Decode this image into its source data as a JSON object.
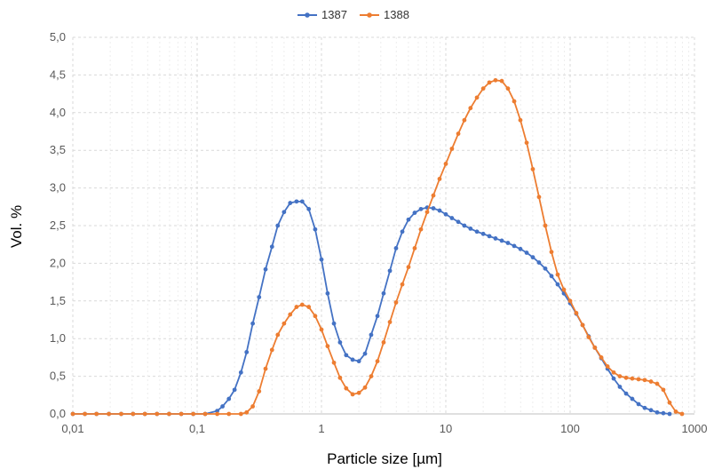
{
  "chart_data": {
    "type": "line",
    "xlabel": "Particle size [µm]",
    "ylabel": "Vol. %",
    "xscale": "log",
    "xlim": [
      0.01,
      1000
    ],
    "ylim": [
      0,
      5
    ],
    "xticks": [
      {
        "value": 0.01,
        "label": "0,01"
      },
      {
        "value": 0.1,
        "label": "0,1"
      },
      {
        "value": 1,
        "label": "1"
      },
      {
        "value": 10,
        "label": "10"
      },
      {
        "value": 100,
        "label": "100"
      },
      {
        "value": 1000,
        "label": "1000"
      }
    ],
    "yticks": [
      {
        "value": 0,
        "label": "0,0"
      },
      {
        "value": 0.5,
        "label": "0,5"
      },
      {
        "value": 1,
        "label": "1,0"
      },
      {
        "value": 1.5,
        "label": "1,5"
      },
      {
        "value": 2,
        "label": "2,0"
      },
      {
        "value": 2.5,
        "label": "2,5"
      },
      {
        "value": 3,
        "label": "3,0"
      },
      {
        "value": 3.5,
        "label": "3,5"
      },
      {
        "value": 4,
        "label": "4,0"
      },
      {
        "value": 4.5,
        "label": "4,5"
      },
      {
        "value": 5,
        "label": "5,0"
      }
    ],
    "grid": true,
    "legend_position": "top-center",
    "series": [
      {
        "name": "1387",
        "color": "#4472C4",
        "points": [
          [
            0.01,
            0
          ],
          [
            0.0125,
            0
          ],
          [
            0.0155,
            0
          ],
          [
            0.0195,
            0
          ],
          [
            0.0245,
            0
          ],
          [
            0.0305,
            0
          ],
          [
            0.038,
            0
          ],
          [
            0.0475,
            0
          ],
          [
            0.0595,
            0
          ],
          [
            0.0745,
            0
          ],
          [
            0.093,
            0
          ],
          [
            0.116,
            0
          ],
          [
            0.145,
            0.04
          ],
          [
            0.16,
            0.1
          ],
          [
            0.18,
            0.2
          ],
          [
            0.2,
            0.32
          ],
          [
            0.225,
            0.55
          ],
          [
            0.25,
            0.82
          ],
          [
            0.28,
            1.2
          ],
          [
            0.315,
            1.55
          ],
          [
            0.355,
            1.92
          ],
          [
            0.4,
            2.22
          ],
          [
            0.445,
            2.5
          ],
          [
            0.5,
            2.68
          ],
          [
            0.56,
            2.8
          ],
          [
            0.63,
            2.82
          ],
          [
            0.7,
            2.82
          ],
          [
            0.79,
            2.72
          ],
          [
            0.89,
            2.45
          ],
          [
            1.0,
            2.05
          ],
          [
            1.12,
            1.6
          ],
          [
            1.26,
            1.2
          ],
          [
            1.41,
            0.95
          ],
          [
            1.58,
            0.78
          ],
          [
            1.78,
            0.72
          ],
          [
            2.0,
            0.7
          ],
          [
            2.24,
            0.8
          ],
          [
            2.51,
            1.05
          ],
          [
            2.82,
            1.3
          ],
          [
            3.16,
            1.6
          ],
          [
            3.55,
            1.9
          ],
          [
            3.98,
            2.2
          ],
          [
            4.47,
            2.42
          ],
          [
            5.01,
            2.58
          ],
          [
            5.62,
            2.67
          ],
          [
            6.31,
            2.72
          ],
          [
            7.08,
            2.74
          ],
          [
            7.94,
            2.73
          ],
          [
            8.91,
            2.7
          ],
          [
            10,
            2.65
          ],
          [
            11.2,
            2.6
          ],
          [
            12.6,
            2.55
          ],
          [
            14.1,
            2.5
          ],
          [
            15.8,
            2.46
          ],
          [
            17.8,
            2.42
          ],
          [
            20,
            2.39
          ],
          [
            22.4,
            2.36
          ],
          [
            25.1,
            2.33
          ],
          [
            28.2,
            2.3
          ],
          [
            31.6,
            2.27
          ],
          [
            35.5,
            2.23
          ],
          [
            39.8,
            2.19
          ],
          [
            44.7,
            2.14
          ],
          [
            50.1,
            2.08
          ],
          [
            56.2,
            2.01
          ],
          [
            63.1,
            1.93
          ],
          [
            70.8,
            1.83
          ],
          [
            79.4,
            1.72
          ],
          [
            89.1,
            1.6
          ],
          [
            100,
            1.47
          ],
          [
            112,
            1.33
          ],
          [
            126,
            1.18
          ],
          [
            141,
            1.03
          ],
          [
            158,
            0.88
          ],
          [
            178,
            0.74
          ],
          [
            200,
            0.6
          ],
          [
            224,
            0.47
          ],
          [
            251,
            0.36
          ],
          [
            282,
            0.27
          ],
          [
            316,
            0.2
          ],
          [
            355,
            0.13
          ],
          [
            398,
            0.08
          ],
          [
            447,
            0.05
          ],
          [
            501,
            0.02
          ],
          [
            562,
            0.01
          ],
          [
            631,
            0
          ]
        ]
      },
      {
        "name": "1388",
        "color": "#ED7D31",
        "points": [
          [
            0.01,
            0
          ],
          [
            0.0125,
            0
          ],
          [
            0.0155,
            0
          ],
          [
            0.0195,
            0
          ],
          [
            0.0245,
            0
          ],
          [
            0.0305,
            0
          ],
          [
            0.038,
            0
          ],
          [
            0.0475,
            0
          ],
          [
            0.0595,
            0
          ],
          [
            0.0745,
            0
          ],
          [
            0.093,
            0
          ],
          [
            0.116,
            0
          ],
          [
            0.145,
            0
          ],
          [
            0.18,
            0
          ],
          [
            0.225,
            0
          ],
          [
            0.25,
            0.02
          ],
          [
            0.28,
            0.1
          ],
          [
            0.315,
            0.3
          ],
          [
            0.355,
            0.6
          ],
          [
            0.4,
            0.85
          ],
          [
            0.445,
            1.05
          ],
          [
            0.5,
            1.2
          ],
          [
            0.56,
            1.32
          ],
          [
            0.63,
            1.42
          ],
          [
            0.7,
            1.45
          ],
          [
            0.79,
            1.42
          ],
          [
            0.89,
            1.3
          ],
          [
            1.0,
            1.12
          ],
          [
            1.12,
            0.9
          ],
          [
            1.26,
            0.68
          ],
          [
            1.41,
            0.48
          ],
          [
            1.58,
            0.34
          ],
          [
            1.78,
            0.26
          ],
          [
            2.0,
            0.28
          ],
          [
            2.24,
            0.35
          ],
          [
            2.51,
            0.5
          ],
          [
            2.82,
            0.7
          ],
          [
            3.16,
            0.95
          ],
          [
            3.55,
            1.22
          ],
          [
            3.98,
            1.48
          ],
          [
            4.47,
            1.72
          ],
          [
            5.01,
            1.95
          ],
          [
            5.62,
            2.2
          ],
          [
            6.31,
            2.45
          ],
          [
            7.08,
            2.68
          ],
          [
            7.94,
            2.9
          ],
          [
            8.91,
            3.12
          ],
          [
            10,
            3.32
          ],
          [
            11.2,
            3.52
          ],
          [
            12.6,
            3.72
          ],
          [
            14.1,
            3.9
          ],
          [
            15.8,
            4.06
          ],
          [
            17.8,
            4.2
          ],
          [
            20,
            4.32
          ],
          [
            22.4,
            4.4
          ],
          [
            25.1,
            4.43
          ],
          [
            28.2,
            4.42
          ],
          [
            31.6,
            4.32
          ],
          [
            35.5,
            4.15
          ],
          [
            39.8,
            3.9
          ],
          [
            44.7,
            3.6
          ],
          [
            50.1,
            3.25
          ],
          [
            56.2,
            2.88
          ],
          [
            63.1,
            2.5
          ],
          [
            70.8,
            2.15
          ],
          [
            79.4,
            1.85
          ],
          [
            89.1,
            1.65
          ],
          [
            100,
            1.5
          ],
          [
            112,
            1.34
          ],
          [
            126,
            1.18
          ],
          [
            141,
            1.02
          ],
          [
            158,
            0.88
          ],
          [
            178,
            0.75
          ],
          [
            200,
            0.63
          ],
          [
            224,
            0.55
          ],
          [
            251,
            0.5
          ],
          [
            282,
            0.48
          ],
          [
            316,
            0.47
          ],
          [
            355,
            0.46
          ],
          [
            398,
            0.45
          ],
          [
            447,
            0.43
          ],
          [
            501,
            0.4
          ],
          [
            562,
            0.32
          ],
          [
            631,
            0.15
          ],
          [
            708,
            0.03
          ],
          [
            794,
            0
          ]
        ]
      }
    ]
  }
}
